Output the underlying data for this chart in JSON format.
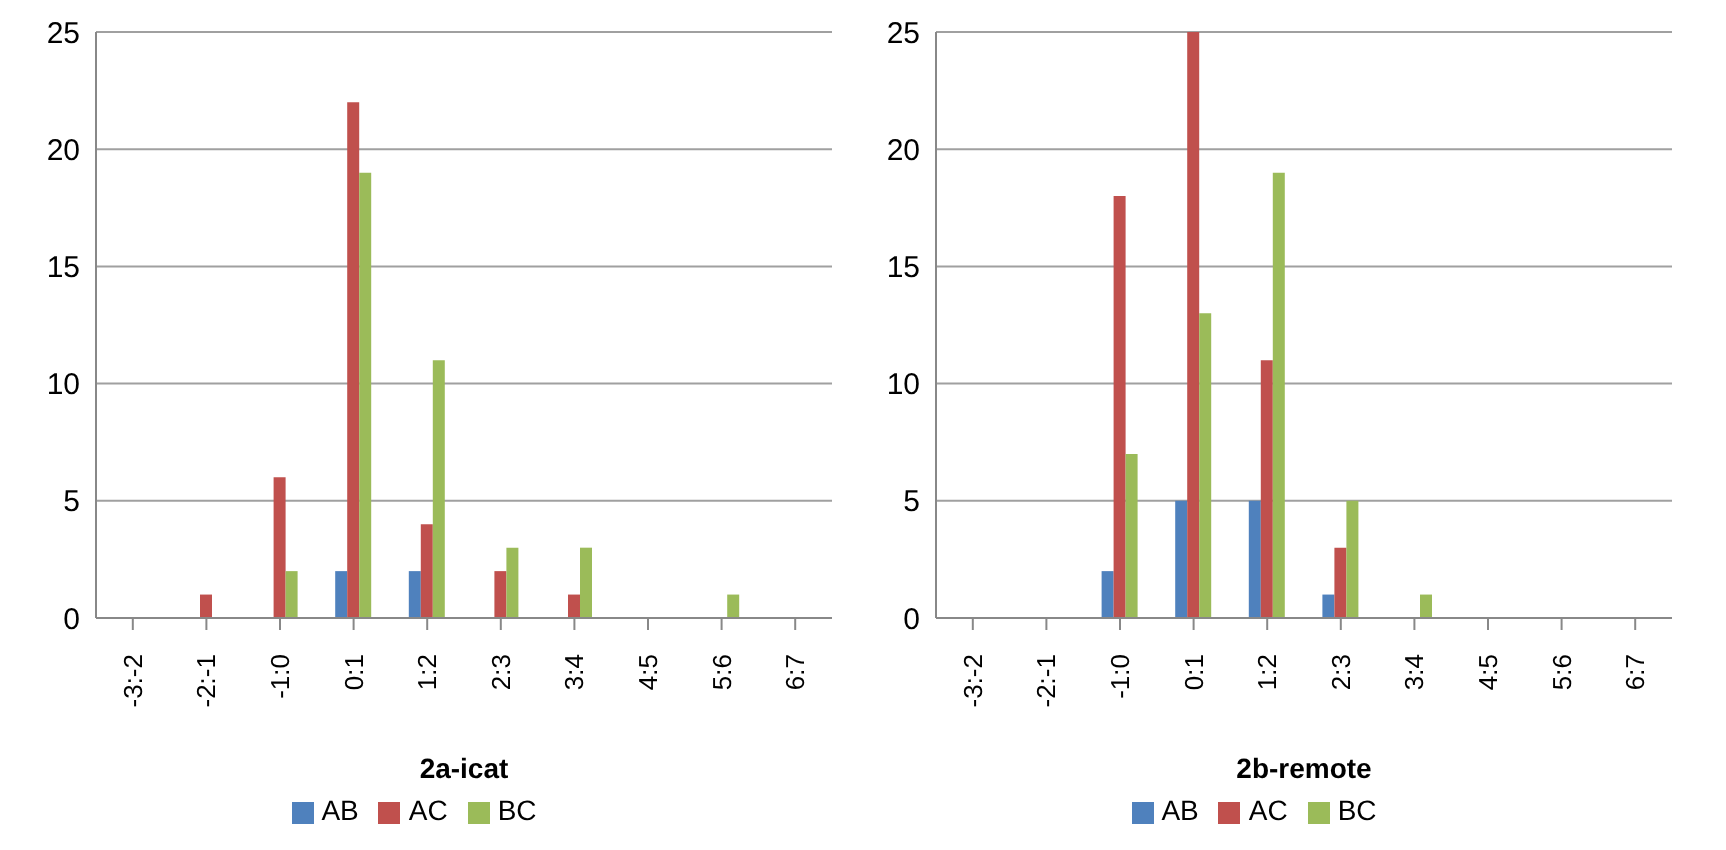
{
  "chart_data": [
    {
      "type": "bar",
      "xlabel": "2a-icat",
      "categories": [
        "-3:-2",
        "-2:-1",
        "-1:0",
        "0:1",
        "1:2",
        "2:3",
        "3:4",
        "4:5",
        "5:6",
        "6:7"
      ],
      "ylim": [
        0,
        25
      ],
      "yticks": [
        0,
        5,
        10,
        15,
        20,
        25
      ],
      "grid": "y",
      "legend": "bottom",
      "series": [
        {
          "name": "AB",
          "color": "#4f81bd",
          "values": [
            0,
            0,
            0,
            2,
            2,
            0,
            0,
            0,
            0,
            0
          ]
        },
        {
          "name": "AC",
          "color": "#c0504d",
          "values": [
            0,
            1,
            6,
            22,
            4,
            2,
            1,
            0,
            0,
            0
          ]
        },
        {
          "name": "BC",
          "color": "#9bbb59",
          "values": [
            0,
            0,
            2,
            19,
            11,
            3,
            3,
            0,
            1,
            0
          ]
        }
      ]
    },
    {
      "type": "bar",
      "xlabel": "2b-remote",
      "categories": [
        "-3:-2",
        "-2:-1",
        "-1:0",
        "0:1",
        "1:2",
        "2:3",
        "3:4",
        "4:5",
        "5:6",
        "6:7"
      ],
      "ylim": [
        0,
        25
      ],
      "yticks": [
        0,
        5,
        10,
        15,
        20,
        25
      ],
      "grid": "y",
      "legend": "bottom",
      "series": [
        {
          "name": "AB",
          "color": "#4f81bd",
          "values": [
            0,
            0,
            2,
            5,
            5,
            1,
            0,
            0,
            0,
            0
          ]
        },
        {
          "name": "AC",
          "color": "#c0504d",
          "values": [
            0,
            0,
            18,
            25,
            11,
            3,
            0,
            0,
            0,
            0
          ]
        },
        {
          "name": "BC",
          "color": "#9bbb59",
          "values": [
            0,
            0,
            7,
            13,
            19,
            5,
            1,
            0,
            0,
            0
          ]
        }
      ]
    }
  ]
}
